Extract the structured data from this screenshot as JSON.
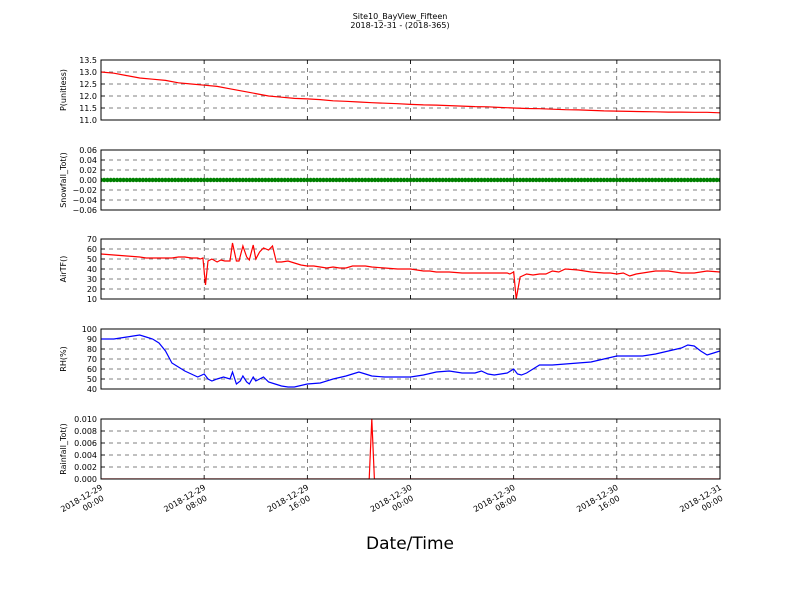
{
  "title": "Site10_BayView_Fifteen",
  "subtitle": "2018-12-31 - (2018-365)",
  "xlabel": "Date/Time",
  "x_ticks": [
    "2018-12-29\n00:00",
    "2018-12-29\n08:00",
    "2018-12-29\n16:00",
    "2018-12-30\n00:00",
    "2018-12-30\n08:00",
    "2018-12-30\n16:00",
    "2018-12-31\n00:00"
  ],
  "chart_data": [
    {
      "type": "line",
      "ylabel": "P(unitless)",
      "ylim": [
        11.0,
        13.5
      ],
      "yticks": [
        "11.0",
        "11.5",
        "12.0",
        "12.5",
        "13.0",
        "13.5"
      ],
      "xlim_hours": [
        0,
        48
      ],
      "grid": true,
      "series": [
        {
          "color": "#ff0000",
          "x_hours": [
            0,
            1,
            2,
            3,
            4,
            5,
            6,
            7,
            8,
            9,
            10,
            11,
            12,
            13,
            14,
            15,
            16,
            17,
            18,
            19,
            20,
            21,
            22,
            23,
            24,
            25,
            26,
            27,
            28,
            29,
            30,
            31,
            32,
            33,
            34,
            35,
            36,
            37,
            38,
            39,
            40,
            41,
            42,
            43,
            44,
            45,
            46,
            47,
            48
          ],
          "values": [
            13.0,
            12.95,
            12.85,
            12.75,
            12.7,
            12.65,
            12.55,
            12.5,
            12.45,
            12.4,
            12.3,
            12.2,
            12.1,
            12.0,
            11.95,
            11.9,
            11.88,
            11.85,
            11.8,
            11.78,
            11.75,
            11.72,
            11.7,
            11.68,
            11.65,
            11.63,
            11.62,
            11.6,
            11.58,
            11.56,
            11.55,
            11.52,
            11.5,
            11.48,
            11.47,
            11.45,
            11.43,
            11.42,
            11.4,
            11.38,
            11.37,
            11.36,
            11.35,
            11.34,
            11.33,
            11.33,
            11.32,
            11.32,
            11.3
          ]
        }
      ]
    },
    {
      "type": "scatter",
      "ylabel": "Snowfall_Tot()",
      "ylim": [
        -0.06,
        0.06
      ],
      "yticks": [
        "−0.06",
        "−0.04",
        "−0.02",
        "0.00",
        "0.02",
        "0.04",
        "0.06"
      ],
      "xlim_hours": [
        0,
        48
      ],
      "grid": true,
      "series": [
        {
          "color": "#008000",
          "constant_value": 0.0,
          "x_start": 0,
          "x_end": 48,
          "step_hours": 0.25
        }
      ]
    },
    {
      "type": "line",
      "ylabel": "AirTF()",
      "ylim": [
        10,
        70
      ],
      "yticks": [
        "10",
        "20",
        "30",
        "40",
        "50",
        "60",
        "70"
      ],
      "xlim_hours": [
        0,
        48
      ],
      "grid": true,
      "series": [
        {
          "color": "#ff0000",
          "x_hours": [
            0,
            1,
            2,
            3,
            3.5,
            4,
            4.5,
            5,
            5.5,
            6,
            6.5,
            7,
            7.5,
            7.7,
            7.9,
            8.1,
            8.3,
            8.6,
            9,
            9.3,
            9.6,
            10,
            10.2,
            10.5,
            10.7,
            11,
            11.3,
            11.5,
            11.8,
            12,
            12.3,
            12.6,
            13,
            13.3,
            13.6,
            14,
            14.5,
            15,
            15.5,
            16,
            16.5,
            17,
            17.5,
            18,
            18.5,
            19,
            19.5,
            20,
            20.5,
            21,
            22,
            23,
            24,
            24.5,
            25,
            25.5,
            26,
            27,
            28,
            29,
            30,
            31,
            31.5,
            31.7,
            32,
            32.2,
            32.5,
            33,
            33.5,
            34,
            34.5,
            35,
            35.5,
            36,
            37,
            38,
            39,
            39.5,
            40,
            40.5,
            41,
            41.5,
            42,
            43,
            44,
            44.5,
            45,
            46,
            47,
            48
          ],
          "values": [
            55,
            54,
            53,
            52,
            51,
            51,
            51,
            51,
            51,
            52,
            52,
            51,
            51,
            50,
            51,
            24,
            48,
            50,
            47,
            49,
            48,
            48,
            66,
            48,
            48,
            63,
            52,
            49,
            64,
            50,
            57,
            61,
            59,
            63,
            47,
            47,
            48,
            46,
            44,
            43,
            43,
            42,
            41,
            42,
            41,
            41,
            43,
            43,
            43,
            42,
            41,
            40,
            40,
            39,
            38,
            38,
            37,
            37,
            36,
            36,
            36,
            36,
            36,
            35,
            37,
            10,
            32,
            35,
            34,
            35,
            35,
            38,
            37,
            40,
            39,
            37,
            36,
            36,
            35,
            36,
            33,
            35,
            36,
            38,
            38,
            37,
            36,
            36,
            38,
            37
          ]
        }
      ]
    },
    {
      "type": "line",
      "ylabel": "RH(%)",
      "ylim": [
        40,
        100
      ],
      "yticks": [
        "40",
        "50",
        "60",
        "70",
        "80",
        "90",
        "100"
      ],
      "xlim_hours": [
        0,
        48
      ],
      "grid": true,
      "series": [
        {
          "color": "#0000ff",
          "x_hours": [
            0,
            1,
            2,
            2.5,
            3,
            3.5,
            4,
            4.5,
            5,
            5.5,
            6,
            6.5,
            7,
            7.5,
            8,
            8.3,
            8.6,
            9,
            9.5,
            10,
            10.2,
            10.5,
            10.8,
            11,
            11.3,
            11.5,
            11.8,
            12,
            12.3,
            12.6,
            13,
            13.5,
            14,
            14.5,
            15,
            16,
            17,
            18,
            19,
            19.5,
            20,
            20.5,
            21,
            22,
            23,
            24,
            25,
            26,
            27,
            28,
            29,
            29.5,
            30,
            30.5,
            31,
            31.5,
            32,
            32.3,
            32.6,
            33,
            33.5,
            34,
            35,
            36,
            37,
            38,
            39,
            40,
            41,
            42,
            43,
            44,
            45,
            45.5,
            46,
            46.5,
            47,
            47.5,
            48
          ],
          "values": [
            90,
            90,
            92,
            93,
            94,
            92,
            90,
            86,
            78,
            66,
            62,
            58,
            55,
            52,
            55,
            50,
            48,
            50,
            52,
            50,
            57,
            45,
            48,
            53,
            47,
            45,
            52,
            48,
            50,
            52,
            47,
            45,
            43,
            42,
            42,
            45,
            46,
            50,
            53,
            55,
            57,
            55,
            53,
            52,
            52,
            52,
            54,
            57,
            58,
            56,
            56,
            58,
            55,
            54,
            55,
            56,
            60,
            55,
            54,
            56,
            60,
            64,
            64,
            65,
            66,
            67,
            70,
            73,
            73,
            73,
            75,
            78,
            81,
            84,
            83,
            78,
            74,
            76,
            78
          ]
        }
      ]
    },
    {
      "type": "line",
      "ylabel": "Rainfall_Tot()",
      "ylim": [
        0.0,
        0.01
      ],
      "yticks": [
        "0.000",
        "0.002",
        "0.004",
        "0.006",
        "0.008",
        "0.010"
      ],
      "xlim_hours": [
        0,
        48
      ],
      "grid": true,
      "series": [
        {
          "color": "#ff0000",
          "x_hours": [
            0,
            20.8,
            21,
            21.2,
            48
          ],
          "values": [
            0,
            0,
            0.01,
            0,
            0
          ]
        }
      ]
    }
  ]
}
